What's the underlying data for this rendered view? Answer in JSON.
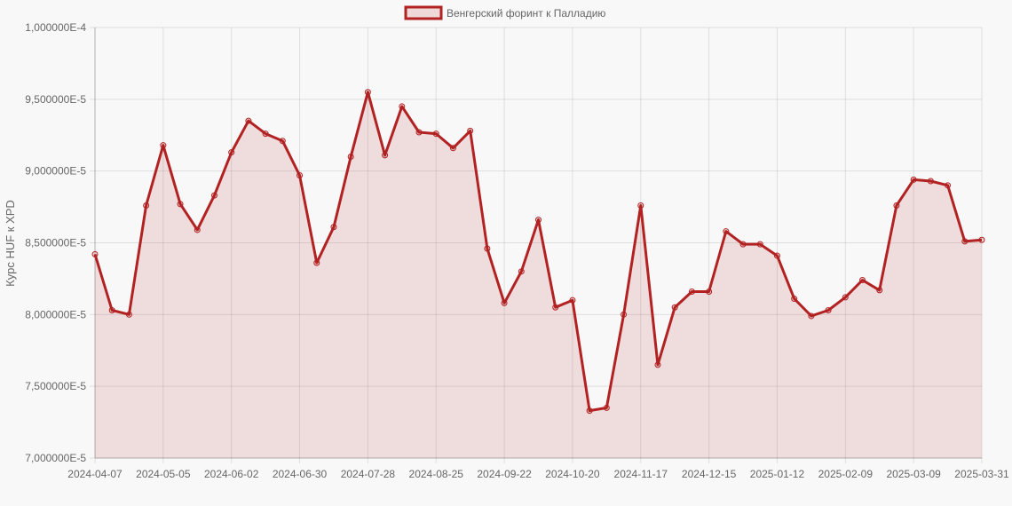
{
  "chart_data": {
    "type": "line",
    "title": "",
    "legend": {
      "position": "top",
      "entries": [
        "Венгерский форинт к Палладию"
      ]
    },
    "xlabel": "",
    "ylabel": "Курс HUF к XPD",
    "ylim": [
      7e-05,
      0.0001
    ],
    "grid": true,
    "y_ticks": [
      "1,000000E-4",
      "9,500000E-5",
      "9,000000E-5",
      "8,500000E-5",
      "8,000000E-5",
      "7,500000E-5",
      "7,000000E-5"
    ],
    "y_tick_values": [
      0.0001,
      9.5e-05,
      9e-05,
      8.5e-05,
      8e-05,
      7.5e-05,
      7e-05
    ],
    "x_ticks": [
      "2024-04-07",
      "2024-05-05",
      "2024-06-02",
      "2024-06-30",
      "2024-07-28",
      "2024-08-25",
      "2024-09-22",
      "2024-10-20",
      "2024-11-17",
      "2024-12-15",
      "2025-01-12",
      "2025-02-09",
      "2025-03-09",
      "2025-03-31"
    ],
    "x_tick_indices": [
      0,
      4,
      8,
      12,
      16,
      20,
      24,
      28,
      32,
      36,
      40,
      44,
      48,
      52
    ],
    "series": [
      {
        "name": "Венгерский форинт к Палладию",
        "color": "#b22222",
        "fill": "rgba(178,34,34,0.12)",
        "values": [
          8.42e-05,
          8.03e-05,
          8e-05,
          8.76e-05,
          9.18e-05,
          8.77e-05,
          8.59e-05,
          8.83e-05,
          9.13e-05,
          9.35e-05,
          9.26e-05,
          9.21e-05,
          8.97e-05,
          8.36e-05,
          8.61e-05,
          9.1e-05,
          9.55e-05,
          9.11e-05,
          9.45e-05,
          9.27e-05,
          9.26e-05,
          9.16e-05,
          9.28e-05,
          8.46e-05,
          8.08e-05,
          8.3e-05,
          8.66e-05,
          8.05e-05,
          8.1e-05,
          7.33e-05,
          7.35e-05,
          8e-05,
          8.76e-05,
          7.65e-05,
          8.05e-05,
          8.16e-05,
          8.16e-05,
          8.58e-05,
          8.49e-05,
          8.49e-05,
          8.41e-05,
          8.11e-05,
          7.99e-05,
          8.03e-05,
          8.12e-05,
          8.24e-05,
          8.17e-05,
          8.76e-05,
          8.94e-05,
          8.93e-05,
          8.9e-05,
          8.51e-05,
          8.52e-05
        ]
      }
    ]
  }
}
